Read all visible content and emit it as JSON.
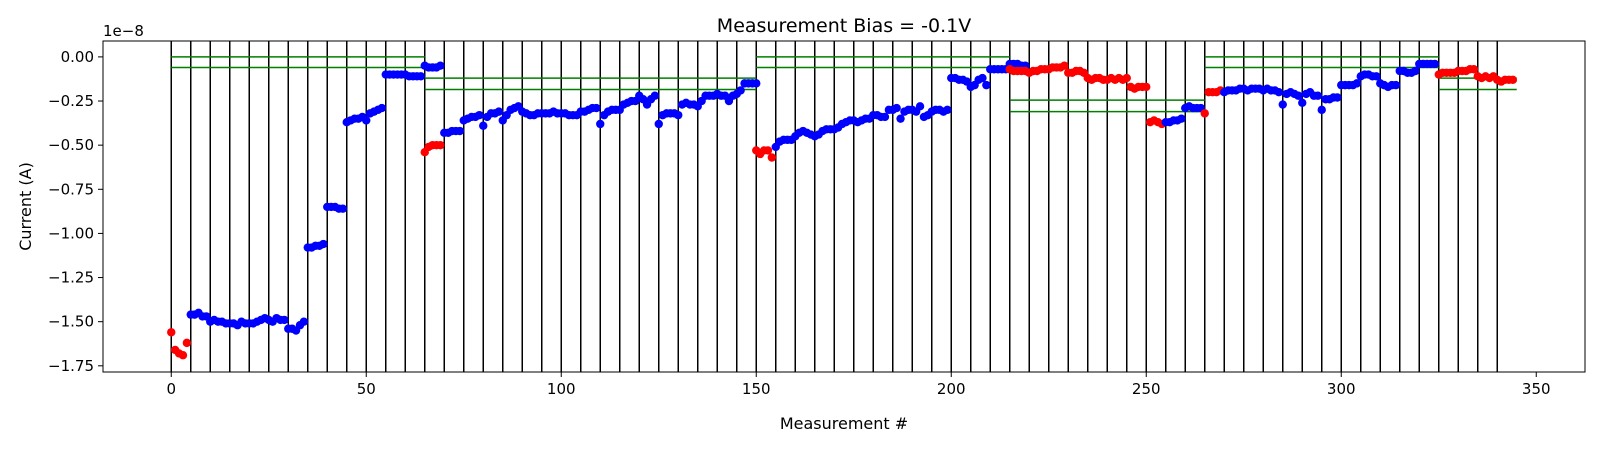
{
  "chart_data": {
    "type": "scatter",
    "title": "Measurement Bias = -0.1V",
    "xlabel": "Measurement #",
    "ylabel": "Current (A)",
    "y_offset_label": "1e−8",
    "xlim": [
      -17.5,
      362.5
    ],
    "ylim": [
      -1.785,
      0.09
    ],
    "y_scale": 1e-08,
    "xticks": [
      0,
      50,
      100,
      150,
      200,
      250,
      300,
      350
    ],
    "xtick_labels": [
      "0",
      "50",
      "100",
      "150",
      "200",
      "250",
      "300",
      "350"
    ],
    "yticks": [
      0.0,
      -0.25,
      -0.5,
      -0.75,
      -1.0,
      -1.25,
      -1.5,
      -1.75
    ],
    "ytick_labels": [
      "0.00",
      "−0.25",
      "−0.50",
      "−0.75",
      "−1.00",
      "−1.25",
      "−1.50",
      "−1.75"
    ],
    "grid": false,
    "colors": {
      "blue": "#0000ff",
      "red": "#ff0000",
      "divider": "#000000",
      "threshold": "#007f00"
    },
    "vertical_lines_x": [
      0,
      5,
      10,
      15,
      20,
      25,
      30,
      35,
      40,
      45,
      50,
      55,
      60,
      65,
      70,
      75,
      80,
      85,
      90,
      95,
      100,
      105,
      110,
      115,
      120,
      125,
      130,
      135,
      140,
      145,
      150,
      155,
      160,
      165,
      170,
      175,
      180,
      185,
      190,
      195,
      200,
      205,
      210,
      215,
      220,
      225,
      230,
      235,
      240,
      245,
      250,
      255,
      260,
      265,
      270,
      275,
      280,
      285,
      290,
      295,
      300,
      305,
      310,
      315,
      320,
      325,
      330,
      335,
      340
    ],
    "threshold_lines": [
      {
        "x": [
          0,
          65
        ],
        "y": 0.0
      },
      {
        "x": [
          0,
          65
        ],
        "y": -0.06
      },
      {
        "x": [
          65,
          150
        ],
        "y": -0.12
      },
      {
        "x": [
          65,
          150
        ],
        "y": -0.185
      },
      {
        "x": [
          150,
          215
        ],
        "y": 0.0
      },
      {
        "x": [
          150,
          215
        ],
        "y": -0.06
      },
      {
        "x": [
          215,
          265
        ],
        "y": -0.245
      },
      {
        "x": [
          215,
          265
        ],
        "y": -0.31
      },
      {
        "x": [
          265,
          325
        ],
        "y": 0.0
      },
      {
        "x": [
          265,
          325
        ],
        "y": -0.06
      },
      {
        "x": [
          325,
          345
        ],
        "y": -0.12
      },
      {
        "x": [
          325,
          345
        ],
        "y": -0.185
      }
    ],
    "segments": [
      {
        "x_start": 0,
        "color": "red",
        "values": [
          -1.56,
          -1.66,
          -1.68,
          -1.69,
          -1.62
        ]
      },
      {
        "x_start": 5,
        "color": "blue",
        "values": [
          -1.46,
          -1.46,
          -1.45,
          -1.47,
          -1.47,
          -1.5,
          -1.49,
          -1.5,
          -1.5,
          -1.51,
          -1.51,
          -1.51,
          -1.52,
          -1.5,
          -1.51,
          -1.51,
          -1.51,
          -1.5,
          -1.49,
          -1.48,
          -1.49,
          -1.5,
          -1.48,
          -1.49,
          -1.49,
          -1.54,
          -1.54,
          -1.55,
          -1.52,
          -1.5,
          -1.08,
          -1.08,
          -1.07,
          -1.07,
          -1.06,
          -0.85,
          -0.85,
          -0.85,
          -0.86,
          -0.86,
          -0.37,
          -0.36,
          -0.35,
          -0.35,
          -0.34,
          -0.36,
          -0.32,
          -0.31,
          -0.3,
          -0.29,
          -0.1,
          -0.1,
          -0.1,
          -0.1,
          -0.1,
          -0.1,
          -0.11,
          -0.11,
          -0.11,
          -0.11,
          -0.05,
          -0.06,
          -0.06,
          -0.06,
          -0.05
        ]
      },
      {
        "x_start": 65,
        "color": "red",
        "values": [
          -0.54,
          -0.51,
          -0.5,
          -0.5,
          -0.5
        ]
      },
      {
        "x_start": 70,
        "color": "blue",
        "values": [
          -0.43,
          -0.43,
          -0.42,
          -0.42,
          -0.42,
          -0.36,
          -0.35,
          -0.34,
          -0.34,
          -0.33,
          -0.39,
          -0.34,
          -0.32,
          -0.32,
          -0.31,
          -0.36,
          -0.33,
          -0.3,
          -0.29,
          -0.28,
          -0.31,
          -0.32,
          -0.33,
          -0.33,
          -0.32,
          -0.32,
          -0.32,
          -0.32,
          -0.31,
          -0.32,
          -0.32,
          -0.32,
          -0.33,
          -0.33,
          -0.33,
          -0.31,
          -0.31,
          -0.3,
          -0.29,
          -0.29,
          -0.38,
          -0.33,
          -0.31,
          -0.3,
          -0.3,
          -0.3,
          -0.27,
          -0.26,
          -0.25,
          -0.25,
          -0.22,
          -0.24,
          -0.27,
          -0.24,
          -0.22,
          -0.38,
          -0.33,
          -0.32,
          -0.32,
          -0.32,
          -0.33,
          -0.27,
          -0.26,
          -0.27,
          -0.27,
          -0.28,
          -0.25,
          -0.22,
          -0.22,
          -0.22,
          -0.21,
          -0.22,
          -0.22,
          -0.25,
          -0.22,
          -0.21,
          -0.19,
          -0.15,
          -0.15,
          -0.15,
          -0.15
        ]
      },
      {
        "x_start": 150,
        "color": "red",
        "values": [
          -0.53,
          -0.55,
          -0.53,
          -0.53,
          -0.57
        ]
      },
      {
        "x_start": 155,
        "color": "blue",
        "values": [
          -0.51,
          -0.48,
          -0.47,
          -0.47,
          -0.47,
          -0.45,
          -0.43,
          -0.42,
          -0.43,
          -0.44,
          -0.45,
          -0.44,
          -0.42,
          -0.41,
          -0.41,
          -0.41,
          -0.4,
          -0.38,
          -0.37,
          -0.36,
          -0.36,
          -0.37,
          -0.36,
          -0.35,
          -0.35,
          -0.33,
          -0.33,
          -0.34,
          -0.34,
          -0.3,
          -0.3,
          -0.29,
          -0.35,
          -0.31,
          -0.3,
          -0.3,
          -0.31,
          -0.28,
          -0.34,
          -0.33,
          -0.31,
          -0.3,
          -0.3,
          -0.31,
          -0.3,
          -0.12,
          -0.12,
          -0.13,
          -0.13,
          -0.14,
          -0.17,
          -0.16,
          -0.13,
          -0.12,
          -0.16,
          -0.07,
          -0.07,
          -0.07,
          -0.07,
          -0.07,
          -0.04,
          -0.04,
          -0.04,
          -0.05,
          -0.05
        ]
      },
      {
        "x_start": 215,
        "color": "red",
        "values": [
          -0.07,
          -0.08,
          -0.08,
          -0.08,
          -0.08,
          -0.09,
          -0.08,
          -0.08,
          -0.07,
          -0.07,
          -0.07,
          -0.06,
          -0.06,
          -0.06,
          -0.05,
          -0.09,
          -0.09,
          -0.08,
          -0.08,
          -0.09,
          -0.12,
          -0.13,
          -0.12,
          -0.12,
          -0.13,
          -0.13,
          -0.12,
          -0.13,
          -0.12,
          -0.13,
          -0.12,
          -0.17,
          -0.18,
          -0.17,
          -0.17,
          -0.17,
          -0.37,
          -0.36,
          -0.37,
          -0.38
        ]
      },
      {
        "x_start": 255,
        "color": "blue",
        "values": [
          -0.37,
          -0.37,
          -0.36,
          -0.36,
          -0.35,
          -0.29,
          -0.28,
          -0.29,
          -0.29,
          -0.29
        ]
      },
      {
        "x_start": 265,
        "color": "red",
        "values": [
          -0.32,
          -0.2,
          -0.2,
          -0.2,
          -0.19
        ]
      },
      {
        "x_start": 270,
        "color": "blue",
        "values": [
          -0.2,
          -0.19,
          -0.19,
          -0.19,
          -0.18,
          -0.18,
          -0.19,
          -0.18,
          -0.18,
          -0.18,
          -0.19,
          -0.18,
          -0.19,
          -0.19,
          -0.2,
          -0.27,
          -0.21,
          -0.2,
          -0.21,
          -0.22,
          -0.26,
          -0.21,
          -0.2,
          -0.22,
          -0.22,
          -0.3,
          -0.24,
          -0.24,
          -0.23,
          -0.23,
          -0.16,
          -0.16,
          -0.16,
          -0.16,
          -0.15,
          -0.11,
          -0.1,
          -0.1,
          -0.11,
          -0.11,
          -0.15,
          -0.16,
          -0.17,
          -0.16,
          -0.16,
          -0.08,
          -0.08,
          -0.09,
          -0.09,
          -0.08,
          -0.04,
          -0.04,
          -0.04,
          -0.04,
          -0.04
        ]
      },
      {
        "x_start": 325,
        "color": "red",
        "values": [
          -0.1,
          -0.09,
          -0.09,
          -0.09,
          -0.09,
          -0.08,
          -0.08,
          -0.08,
          -0.07,
          -0.07,
          -0.11,
          -0.12,
          -0.11,
          -0.12,
          -0.11,
          -0.13,
          -0.14,
          -0.13,
          -0.13,
          -0.13
        ]
      }
    ]
  }
}
